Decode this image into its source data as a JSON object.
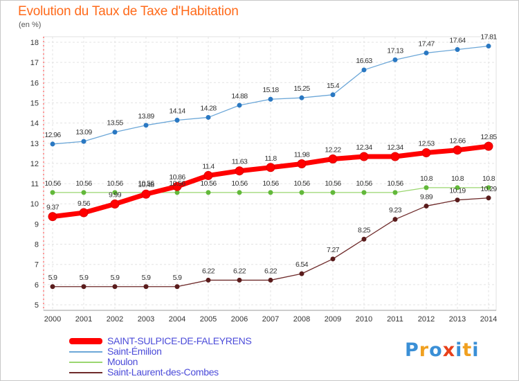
{
  "header": {
    "title": "Evolution du Taux de Taxe d'Habitation",
    "subtitle": "(en %)"
  },
  "logo": {
    "letters": [
      "P",
      "r",
      "o",
      "x",
      "i",
      "t",
      "i"
    ],
    "colors": [
      "#3a8fd6",
      "#f0a020",
      "#3a8fd6",
      "#e8401a",
      "#3a8fd6",
      "#f0a020",
      "#3a8fd6"
    ]
  },
  "chart_data": {
    "type": "line",
    "x": [
      "2000",
      "2001",
      "2002",
      "2003",
      "2004",
      "2005",
      "2006",
      "2007",
      "2008",
      "2009",
      "2010",
      "2011",
      "2012",
      "2013",
      "2014"
    ],
    "ylim": [
      5,
      18
    ],
    "yticks": [
      "5",
      "6",
      "7",
      "8",
      "9",
      "10",
      "11",
      "12",
      "13",
      "14",
      "15",
      "16",
      "17",
      "18"
    ],
    "grid": true,
    "series": [
      {
        "name": "SAINT-SULPICE-DE-FALEYRENS",
        "color": "#ff0000",
        "values": [
          9.37,
          9.56,
          9.99,
          10.48,
          10.86,
          11.4,
          11.63,
          11.8,
          11.98,
          12.22,
          12.34,
          12.34,
          12.53,
          12.66,
          12.85
        ],
        "labels": [
          "9.37",
          "9.56",
          "9.99",
          "10.48",
          "10.86",
          "11.4",
          "11.63",
          "11.8",
          "11.98",
          "12.22",
          "12.34",
          "12.34",
          "12.53",
          "12.66",
          "12.85"
        ]
      },
      {
        "name": "Saint-Émilion",
        "color": "#6ca7d8",
        "values": [
          12.96,
          13.09,
          13.55,
          13.89,
          14.14,
          14.28,
          14.88,
          15.18,
          15.25,
          15.4,
          16.63,
          17.13,
          17.47,
          17.64,
          17.81
        ],
        "labels": [
          "12.96",
          "13.09",
          "13.55",
          "13.89",
          "14.14",
          "14.28",
          "14.88",
          "15.18",
          "15.25",
          "15.4",
          "16.63",
          "17.13",
          "17.47",
          "17.64",
          "17.81"
        ]
      },
      {
        "name": "Moulon",
        "color": "#9ad66f",
        "values": [
          10.56,
          10.56,
          10.56,
          10.56,
          10.56,
          10.56,
          10.56,
          10.56,
          10.56,
          10.56,
          10.56,
          10.56,
          10.8,
          10.8,
          10.8
        ],
        "labels": [
          "10.56",
          "10.56",
          "10.56",
          "10.56",
          "10.56",
          "10.56",
          "10.56",
          "10.56",
          "10.56",
          "10.56",
          "10.56",
          "10.56",
          "10.8",
          "10.8",
          "10.8"
        ]
      },
      {
        "name": "Saint-Laurent-des-Combes",
        "color": "#6e2a2a",
        "values": [
          5.9,
          5.9,
          5.9,
          5.9,
          5.9,
          6.22,
          6.22,
          6.22,
          6.54,
          7.27,
          8.25,
          9.23,
          9.89,
          10.19,
          10.29
        ],
        "labels": [
          "5.9",
          "5.9",
          "5.9",
          "5.9",
          "5.9",
          "6.22",
          "6.22",
          "6.22",
          "6.54",
          "7.27",
          "8.25",
          "9.23",
          "9.89",
          "10.19",
          "10.29"
        ]
      }
    ]
  }
}
